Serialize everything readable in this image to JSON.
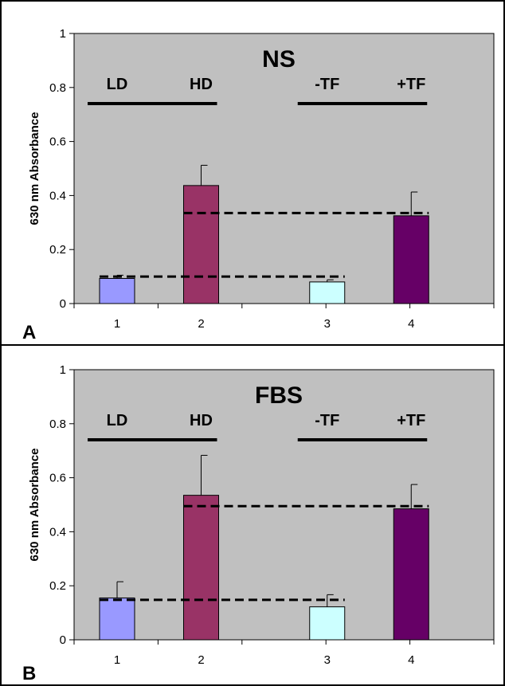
{
  "chart_data": [
    {
      "type": "bar",
      "panel_letter": "A",
      "title": "NS",
      "ylabel": "630 nm Absorbance",
      "xlabel": "",
      "categories": [
        "1",
        "2",
        "3",
        "4"
      ],
      "x_positions": [
        1,
        2,
        3.5,
        4.5
      ],
      "values": [
        0.093,
        0.437,
        0.08,
        0.325
      ],
      "errors": [
        0.012,
        0.075,
        0.008,
        0.088
      ],
      "ylim": [
        0,
        1
      ],
      "yticks": [
        "0",
        "0.2",
        "0.4",
        "0.6",
        "0.8",
        "1"
      ],
      "grid": false,
      "bar_colors": [
        "#9999ff",
        "#993366",
        "#ccffff",
        "#660066"
      ],
      "plot_background": "#c0c0c0",
      "group_labels": [
        {
          "left_label": "LD",
          "right_label": "HD",
          "bars": [
            1,
            2
          ]
        },
        {
          "left_label": "-TF",
          "right_label": "+TF",
          "bars": [
            3,
            4
          ]
        }
      ],
      "reference_lines": [
        {
          "y": 0.1,
          "from_bar": 1,
          "to_bar": 3
        },
        {
          "y": 0.335,
          "from_bar": 2,
          "to_bar": 4
        }
      ]
    },
    {
      "type": "bar",
      "panel_letter": "B",
      "title": "FBS",
      "ylabel": "630 nm Absorbance",
      "xlabel": "",
      "categories": [
        "1",
        "2",
        "3",
        "4"
      ],
      "x_positions": [
        1,
        2,
        3.5,
        4.5
      ],
      "values": [
        0.155,
        0.535,
        0.122,
        0.485
      ],
      "errors": [
        0.06,
        0.148,
        0.045,
        0.09
      ],
      "ylim": [
        0,
        1
      ],
      "yticks": [
        "0",
        "0.2",
        "0.4",
        "0.6",
        "0.8",
        "1"
      ],
      "grid": false,
      "bar_colors": [
        "#9999ff",
        "#993366",
        "#ccffff",
        "#660066"
      ],
      "plot_background": "#c0c0c0",
      "group_labels": [
        {
          "left_label": "LD",
          "right_label": "HD",
          "bars": [
            1,
            2
          ]
        },
        {
          "left_label": "-TF",
          "right_label": "+TF",
          "bars": [
            3,
            4
          ]
        }
      ],
      "reference_lines": [
        {
          "y": 0.148,
          "from_bar": 1,
          "to_bar": 3
        },
        {
          "y": 0.495,
          "from_bar": 2,
          "to_bar": 4
        }
      ]
    }
  ]
}
